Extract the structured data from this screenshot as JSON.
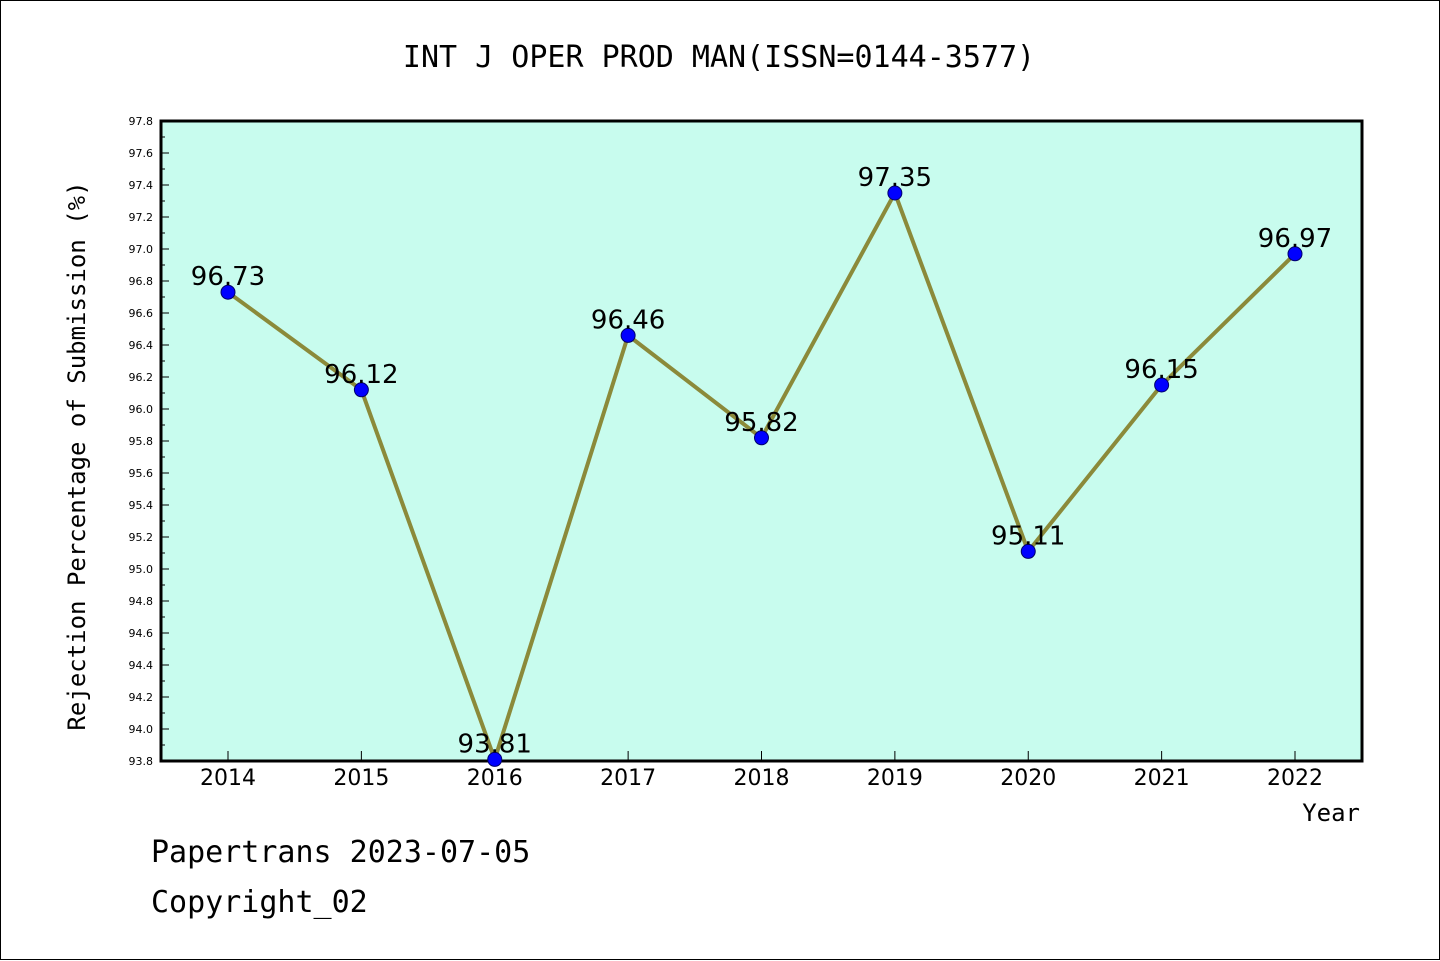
{
  "chart_data": {
    "type": "line",
    "title": "INT J OPER PROD MAN(ISSN=0144-3577)",
    "xlabel": "Year",
    "ylabel": "Rejection Percentage of Submission (%)",
    "categories": [
      "2014",
      "2015",
      "2016",
      "2017",
      "2018",
      "2019",
      "2020",
      "2021",
      "2022"
    ],
    "series": [
      {
        "values": [
          96.73,
          96.12,
          93.81,
          96.46,
          95.82,
          97.35,
          95.11,
          96.15,
          96.97
        ],
        "data_labels": [
          "96.73",
          "96.12",
          "93.81",
          "96.46",
          "95.82",
          "97.35",
          "95.11",
          "96.15",
          "96.97"
        ]
      }
    ],
    "ylim": [
      93.8,
      97.8
    ],
    "yticks": [
      "93.8",
      "94.0",
      "94.2",
      "94.4",
      "94.6",
      "94.8",
      "95.0",
      "95.2",
      "95.4",
      "95.6",
      "95.8",
      "96.0",
      "96.2",
      "96.4",
      "96.6",
      "96.8",
      "97.0",
      "97.2",
      "97.4",
      "97.6",
      "97.8"
    ],
    "grid": false,
    "legend": "none",
    "colors": {
      "plot_background": "#c8fcee",
      "line": "#8b8a3a",
      "marker": "#0000ff",
      "axis": "#000000"
    }
  },
  "footer": {
    "line1": "Papertrans 2023-07-05",
    "line2": "Copyright_02"
  }
}
